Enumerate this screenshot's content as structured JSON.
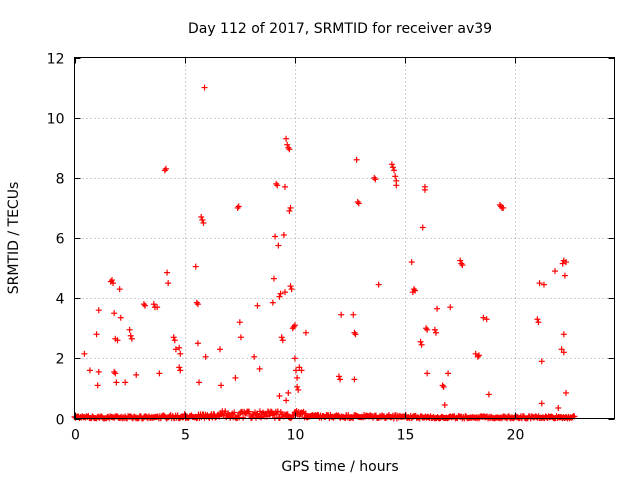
{
  "chart_data": {
    "type": "scatter",
    "title": "Day 112 of 2017, SRMTID for receiver av39",
    "xlabel": "GPS time / hours",
    "ylabel": "SRMTID / TECUs",
    "xlim": [
      0,
      24.5
    ],
    "ylim": [
      0,
      12
    ],
    "xticks": [
      0,
      5,
      10,
      15,
      20
    ],
    "yticks": [
      0,
      2,
      4,
      6,
      8,
      10,
      12
    ],
    "grid": true,
    "grid_style": "dotted",
    "point_color": "#ff0000",
    "marker": "plus",
    "points": [
      [
        0.45,
        2.15
      ],
      [
        0.7,
        1.6
      ],
      [
        1.0,
        2.8
      ],
      [
        1.05,
        1.1
      ],
      [
        1.1,
        3.6
      ],
      [
        1.1,
        1.55
      ],
      [
        1.65,
        4.55
      ],
      [
        1.7,
        4.6
      ],
      [
        1.75,
        4.5
      ],
      [
        1.8,
        3.5
      ],
      [
        1.85,
        2.65
      ],
      [
        1.8,
        1.55
      ],
      [
        1.85,
        1.5
      ],
      [
        1.9,
        1.2
      ],
      [
        1.95,
        2.6
      ],
      [
        2.05,
        4.3
      ],
      [
        2.1,
        3.35
      ],
      [
        2.3,
        1.2
      ],
      [
        2.5,
        2.95
      ],
      [
        2.55,
        2.75
      ],
      [
        2.6,
        2.65
      ],
      [
        2.8,
        1.45
      ],
      [
        3.15,
        3.8
      ],
      [
        3.2,
        3.75
      ],
      [
        3.6,
        3.8
      ],
      [
        3.65,
        3.7
      ],
      [
        3.75,
        3.7
      ],
      [
        3.85,
        1.5
      ],
      [
        4.1,
        8.25
      ],
      [
        4.15,
        8.3
      ],
      [
        4.2,
        4.85
      ],
      [
        4.25,
        4.5
      ],
      [
        4.5,
        2.7
      ],
      [
        4.55,
        2.6
      ],
      [
        4.6,
        2.3
      ],
      [
        4.75,
        2.35
      ],
      [
        4.8,
        2.15
      ],
      [
        4.75,
        1.7
      ],
      [
        4.8,
        1.6
      ],
      [
        5.5,
        5.05
      ],
      [
        5.55,
        3.85
      ],
      [
        5.6,
        3.8
      ],
      [
        5.6,
        2.5
      ],
      [
        5.65,
        1.2
      ],
      [
        5.75,
        6.7
      ],
      [
        5.8,
        6.6
      ],
      [
        5.85,
        6.5
      ],
      [
        5.9,
        11.0
      ],
      [
        5.95,
        2.05
      ],
      [
        6.6,
        2.3
      ],
      [
        6.65,
        1.1
      ],
      [
        7.3,
        1.35
      ],
      [
        7.4,
        7.0
      ],
      [
        7.45,
        7.05
      ],
      [
        7.5,
        3.2
      ],
      [
        7.55,
        2.7
      ],
      [
        8.15,
        2.05
      ],
      [
        8.3,
        3.75
      ],
      [
        8.4,
        1.65
      ],
      [
        9.0,
        3.85
      ],
      [
        9.05,
        4.65
      ],
      [
        9.1,
        6.05
      ],
      [
        9.15,
        7.8
      ],
      [
        9.2,
        7.75
      ],
      [
        9.25,
        5.75
      ],
      [
        9.3,
        4.05
      ],
      [
        9.35,
        4.15
      ],
      [
        9.4,
        2.7
      ],
      [
        9.45,
        2.6
      ],
      [
        9.5,
        6.1
      ],
      [
        9.55,
        7.7
      ],
      [
        9.55,
        4.2
      ],
      [
        9.6,
        9.3
      ],
      [
        9.65,
        9.1
      ],
      [
        9.7,
        9.0
      ],
      [
        9.75,
        8.95
      ],
      [
        9.75,
        6.9
      ],
      [
        9.8,
        7.0
      ],
      [
        9.8,
        4.4
      ],
      [
        9.85,
        4.3
      ],
      [
        9.9,
        3.0
      ],
      [
        9.95,
        3.05
      ],
      [
        10.0,
        3.1
      ],
      [
        10.0,
        2.0
      ],
      [
        10.05,
        1.6
      ],
      [
        10.1,
        1.35
      ],
      [
        10.1,
        1.05
      ],
      [
        10.15,
        0.95
      ],
      [
        10.2,
        1.7
      ],
      [
        10.3,
        1.6
      ],
      [
        9.3,
        0.75
      ],
      [
        9.6,
        0.6
      ],
      [
        9.7,
        0.85
      ],
      [
        10.5,
        2.85
      ],
      [
        12.1,
        3.45
      ],
      [
        12.0,
        1.4
      ],
      [
        12.05,
        1.3
      ],
      [
        12.65,
        3.45
      ],
      [
        12.7,
        2.85
      ],
      [
        12.75,
        2.8
      ],
      [
        12.7,
        1.3
      ],
      [
        12.8,
        8.6
      ],
      [
        12.85,
        7.2
      ],
      [
        12.9,
        7.15
      ],
      [
        13.6,
        8.0
      ],
      [
        13.65,
        7.95
      ],
      [
        13.8,
        4.45
      ],
      [
        14.4,
        8.45
      ],
      [
        14.45,
        8.35
      ],
      [
        14.5,
        8.25
      ],
      [
        14.55,
        8.05
      ],
      [
        14.6,
        7.9
      ],
      [
        14.6,
        7.75
      ],
      [
        15.3,
        5.2
      ],
      [
        15.35,
        4.2
      ],
      [
        15.4,
        4.3
      ],
      [
        15.45,
        4.25
      ],
      [
        15.7,
        2.55
      ],
      [
        15.75,
        2.45
      ],
      [
        15.8,
        6.35
      ],
      [
        15.9,
        7.7
      ],
      [
        15.9,
        7.6
      ],
      [
        15.95,
        3.0
      ],
      [
        16.0,
        2.95
      ],
      [
        16.0,
        1.5
      ],
      [
        16.35,
        2.95
      ],
      [
        16.4,
        2.85
      ],
      [
        16.45,
        3.65
      ],
      [
        16.7,
        1.1
      ],
      [
        16.75,
        1.05
      ],
      [
        16.8,
        0.45
      ],
      [
        16.95,
        1.5
      ],
      [
        17.05,
        3.7
      ],
      [
        17.5,
        5.25
      ],
      [
        17.55,
        5.15
      ],
      [
        17.6,
        5.1
      ],
      [
        18.2,
        2.15
      ],
      [
        18.3,
        2.05
      ],
      [
        18.35,
        2.1
      ],
      [
        18.55,
        3.35
      ],
      [
        18.7,
        3.3
      ],
      [
        18.8,
        0.8
      ],
      [
        19.3,
        7.1
      ],
      [
        19.35,
        7.05
      ],
      [
        19.4,
        7.0
      ],
      [
        19.45,
        7.0
      ],
      [
        21.0,
        3.3
      ],
      [
        21.05,
        3.2
      ],
      [
        21.1,
        4.5
      ],
      [
        21.2,
        1.9
      ],
      [
        21.2,
        0.5
      ],
      [
        21.3,
        4.45
      ],
      [
        21.8,
        4.9
      ],
      [
        21.95,
        0.35
      ],
      [
        22.1,
        2.3
      ],
      [
        22.2,
        2.2
      ],
      [
        22.15,
        5.15
      ],
      [
        22.2,
        5.25
      ],
      [
        22.2,
        2.8
      ],
      [
        22.25,
        4.75
      ],
      [
        22.3,
        5.2
      ],
      [
        22.3,
        0.85
      ]
    ]
  }
}
